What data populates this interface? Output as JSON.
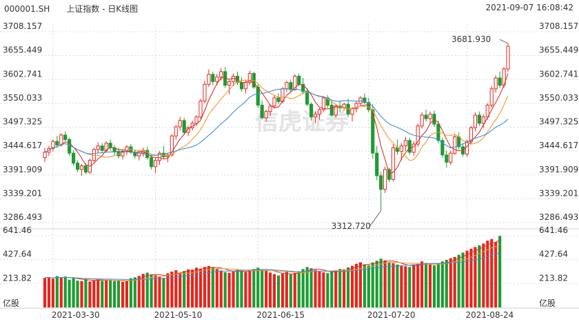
{
  "header": {
    "code": "000001.SH",
    "name": "上证指数 - 日K线图",
    "datetime": "2021-09-07 16:08:42"
  },
  "watermark": "信虎证券",
  "colors": {
    "up": "#e8251c",
    "down": "#1e9b33",
    "ma5": "#d5342a",
    "ma10": "#f5962a",
    "ma20": "#3d8fd8",
    "grid": "#d8d8d8"
  },
  "chart_data": {
    "type": "candlestick",
    "price_ticks": [
      "3708.157",
      "3655.449",
      "3602.741",
      "3550.033",
      "3497.325",
      "3444.617",
      "3391.909",
      "3339.201",
      "3286.493"
    ],
    "volume_ticks": [
      "641.46",
      "427.64",
      "213.82"
    ],
    "volume_unit": "亿股",
    "x_ticks": [
      "2021-03-30",
      "2021-05-10",
      "2021-06-15",
      "2021-07-20",
      "2021-08-24"
    ],
    "annotations": {
      "high": "3681.930",
      "low": "3312.720"
    },
    "ohlc": [
      [
        3430,
        3452,
        3420,
        3442
      ],
      [
        3442,
        3456,
        3434,
        3450
      ],
      [
        3450,
        3470,
        3444,
        3466
      ],
      [
        3466,
        3478,
        3452,
        3458
      ],
      [
        3458,
        3484,
        3454,
        3480
      ],
      [
        3480,
        3488,
        3466,
        3470
      ],
      [
        3470,
        3474,
        3434,
        3440
      ],
      [
        3440,
        3446,
        3412,
        3418
      ],
      [
        3418,
        3424,
        3398,
        3404
      ],
      [
        3404,
        3416,
        3390,
        3412
      ],
      [
        3412,
        3418,
        3394,
        3398
      ],
      [
        3398,
        3428,
        3394,
        3424
      ],
      [
        3424,
        3452,
        3420,
        3448
      ],
      [
        3448,
        3464,
        3440,
        3456
      ],
      [
        3456,
        3462,
        3440,
        3446
      ],
      [
        3446,
        3466,
        3442,
        3462
      ],
      [
        3462,
        3470,
        3446,
        3452
      ],
      [
        3452,
        3458,
        3436,
        3444
      ],
      [
        3444,
        3452,
        3428,
        3434
      ],
      [
        3434,
        3448,
        3426,
        3444
      ],
      [
        3444,
        3458,
        3436,
        3454
      ],
      [
        3454,
        3460,
        3438,
        3442
      ],
      [
        3442,
        3448,
        3428,
        3434
      ],
      [
        3434,
        3446,
        3424,
        3440
      ],
      [
        3440,
        3452,
        3432,
        3446
      ],
      [
        3446,
        3454,
        3426,
        3430
      ],
      [
        3430,
        3438,
        3404,
        3410
      ],
      [
        3410,
        3430,
        3396,
        3424
      ],
      [
        3424,
        3444,
        3414,
        3440
      ],
      [
        3440,
        3456,
        3428,
        3432
      ],
      [
        3432,
        3440,
        3420,
        3436
      ],
      [
        3436,
        3482,
        3432,
        3478
      ],
      [
        3478,
        3502,
        3470,
        3498
      ],
      [
        3498,
        3520,
        3490,
        3512
      ],
      [
        3512,
        3518,
        3480,
        3486
      ],
      [
        3486,
        3500,
        3478,
        3496
      ],
      [
        3496,
        3512,
        3490,
        3506
      ],
      [
        3506,
        3524,
        3500,
        3520
      ],
      [
        3520,
        3560,
        3516,
        3555
      ],
      [
        3555,
        3600,
        3550,
        3592
      ],
      [
        3592,
        3625,
        3586,
        3614
      ],
      [
        3614,
        3620,
        3590,
        3598
      ],
      [
        3598,
        3615,
        3590,
        3608
      ],
      [
        3608,
        3628,
        3600,
        3620
      ],
      [
        3620,
        3630,
        3584,
        3590
      ],
      [
        3590,
        3602,
        3570,
        3598
      ],
      [
        3598,
        3616,
        3588,
        3610
      ],
      [
        3610,
        3620,
        3590,
        3596
      ],
      [
        3596,
        3608,
        3576,
        3582
      ],
      [
        3582,
        3600,
        3572,
        3596
      ],
      [
        3596,
        3622,
        3590,
        3616
      ],
      [
        3616,
        3620,
        3582,
        3586
      ],
      [
        3586,
        3592,
        3540,
        3546
      ],
      [
        3546,
        3556,
        3514,
        3518
      ],
      [
        3518,
        3536,
        3510,
        3532
      ],
      [
        3532,
        3548,
        3522,
        3544
      ],
      [
        3544,
        3568,
        3538,
        3562
      ],
      [
        3562,
        3572,
        3548,
        3554
      ],
      [
        3554,
        3586,
        3550,
        3582
      ],
      [
        3582,
        3600,
        3576,
        3596
      ],
      [
        3596,
        3602,
        3574,
        3580
      ],
      [
        3580,
        3614,
        3578,
        3610
      ],
      [
        3610,
        3616,
        3588,
        3592
      ],
      [
        3592,
        3606,
        3570,
        3576
      ],
      [
        3576,
        3584,
        3544,
        3548
      ],
      [
        3548,
        3552,
        3512,
        3520
      ],
      [
        3520,
        3532,
        3506,
        3526
      ],
      [
        3526,
        3540,
        3514,
        3536
      ],
      [
        3536,
        3566,
        3532,
        3562
      ],
      [
        3562,
        3568,
        3540,
        3546
      ],
      [
        3546,
        3556,
        3520,
        3524
      ],
      [
        3524,
        3548,
        3518,
        3544
      ],
      [
        3544,
        3556,
        3530,
        3540
      ],
      [
        3540,
        3552,
        3534,
        3548
      ],
      [
        3548,
        3560,
        3520,
        3526
      ],
      [
        3526,
        3542,
        3510,
        3538
      ],
      [
        3538,
        3554,
        3530,
        3550
      ],
      [
        3550,
        3566,
        3544,
        3562
      ],
      [
        3562,
        3572,
        3548,
        3552
      ],
      [
        3552,
        3562,
        3530,
        3536
      ],
      [
        3536,
        3548,
        3428,
        3440
      ],
      [
        3440,
        3456,
        3380,
        3390
      ],
      [
        3390,
        3398,
        3312.72,
        3360
      ],
      [
        3360,
        3410,
        3352,
        3404
      ],
      [
        3404,
        3408,
        3376,
        3382
      ],
      [
        3382,
        3460,
        3378,
        3452
      ],
      [
        3452,
        3470,
        3436,
        3444
      ],
      [
        3444,
        3462,
        3424,
        3456
      ],
      [
        3456,
        3476,
        3444,
        3468
      ],
      [
        3468,
        3474,
        3436,
        3442
      ],
      [
        3442,
        3466,
        3434,
        3460
      ],
      [
        3460,
        3506,
        3454,
        3500
      ],
      [
        3500,
        3530,
        3494,
        3524
      ],
      [
        3524,
        3536,
        3510,
        3516
      ],
      [
        3516,
        3532,
        3506,
        3526
      ],
      [
        3526,
        3534,
        3498,
        3504
      ],
      [
        3504,
        3512,
        3462,
        3468
      ],
      [
        3468,
        3474,
        3430,
        3436
      ],
      [
        3436,
        3446,
        3408,
        3420
      ],
      [
        3420,
        3446,
        3414,
        3440
      ],
      [
        3440,
        3482,
        3436,
        3476
      ],
      [
        3476,
        3486,
        3448,
        3454
      ],
      [
        3454,
        3462,
        3432,
        3438
      ],
      [
        3438,
        3470,
        3432,
        3466
      ],
      [
        3466,
        3500,
        3460,
        3496
      ],
      [
        3496,
        3530,
        3488,
        3524
      ],
      [
        3524,
        3532,
        3500,
        3506
      ],
      [
        3506,
        3526,
        3496,
        3520
      ],
      [
        3520,
        3550,
        3514,
        3546
      ],
      [
        3546,
        3588,
        3540,
        3582
      ],
      [
        3582,
        3612,
        3574,
        3606
      ],
      [
        3606,
        3620,
        3584,
        3590
      ],
      [
        3590,
        3630,
        3584,
        3626
      ],
      [
        3626,
        3681.93,
        3620,
        3676
      ]
    ],
    "volume": [
      265,
      272,
      258,
      281,
      266,
      277,
      248,
      262,
      240,
      236,
      254,
      232,
      245,
      251,
      238,
      247,
      242,
      236,
      241,
      229,
      235,
      262,
      270,
      282,
      301,
      311,
      296,
      288,
      276,
      264,
      305,
      321,
      333,
      312,
      326,
      340,
      338,
      356,
      348,
      362,
      371,
      358,
      346,
      331,
      316,
      309,
      322,
      338,
      327,
      318,
      331,
      344,
      356,
      341,
      329,
      312,
      298,
      286,
      302,
      318,
      296,
      308,
      321,
      344,
      362,
      351,
      336,
      322,
      314,
      306,
      318,
      332,
      345,
      341,
      358,
      372,
      391,
      404,
      386,
      378,
      402,
      418,
      436,
      421,
      405,
      396,
      384,
      372,
      368,
      362,
      379,
      395,
      412,
      398,
      386,
      376,
      395,
      412,
      426,
      440,
      452,
      471,
      491,
      508,
      526,
      541,
      556,
      572,
      598,
      612,
      586,
      640
    ]
  }
}
